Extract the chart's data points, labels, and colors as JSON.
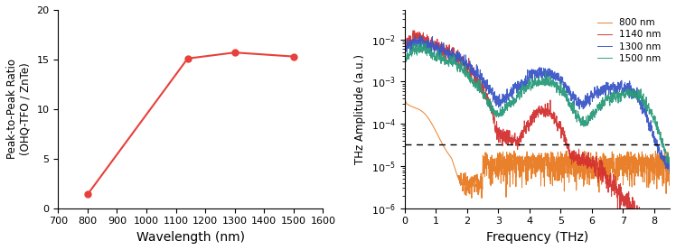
{
  "left": {
    "x": [
      800,
      1140,
      1300,
      1500
    ],
    "y": [
      1.4,
      15.1,
      15.7,
      15.3
    ],
    "color": "#e8403a",
    "xlabel": "Wavelength (nm)",
    "ylabel": "Peak-to-Peak Ratio\n(OHQ-TFO / ZnTe)",
    "xlim": [
      700,
      1600
    ],
    "ylim": [
      0,
      20
    ],
    "xticks": [
      700,
      800,
      900,
      1000,
      1100,
      1200,
      1300,
      1400,
      1500,
      1600
    ],
    "yticks": [
      0,
      5,
      10,
      15,
      20
    ]
  },
  "right": {
    "xlim": [
      0,
      8.5
    ],
    "ylim_log": [
      1e-06,
      0.05
    ],
    "xlabel": "Frequency (THz)",
    "ylabel": "THz Amplitude (a.u.)",
    "xticks": [
      0,
      1,
      2,
      3,
      4,
      5,
      6,
      7,
      8
    ],
    "dashed_line_y": 3.2e-05,
    "lines": [
      {
        "label": "800 nm",
        "color": "#e87a20"
      },
      {
        "label": "1140 nm",
        "color": "#d43030"
      },
      {
        "label": "1300 nm",
        "color": "#3a56c8"
      },
      {
        "label": "1500 nm",
        "color": "#2a9a7a"
      }
    ]
  }
}
